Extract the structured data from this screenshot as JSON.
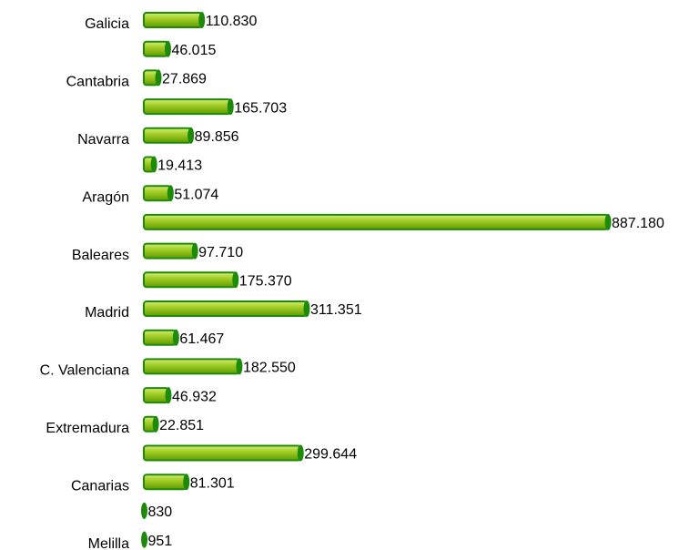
{
  "chart_data": {
    "type": "bar",
    "orientation": "horizontal",
    "categories": [
      "Galicia",
      null,
      "Cantabria",
      null,
      "Navarra",
      null,
      "Aragón",
      null,
      "Baleares",
      null,
      "Madrid",
      null,
      "C. Valenciana",
      null,
      "Extremadura",
      null,
      "Canarias",
      null,
      "Melilla"
    ],
    "values": [
      110830,
      46015,
      27869,
      165703,
      89856,
      19413,
      51074,
      887180,
      97710,
      175370,
      311351,
      61467,
      182550,
      46932,
      22851,
      299644,
      81301,
      830,
      951
    ],
    "value_labels": [
      "110.830",
      "46.015",
      "27.869",
      "165.703",
      "89.856",
      "19.413",
      "51.074",
      "887.180",
      "97.710",
      "175.370",
      "311.351",
      "61.467",
      "182.550",
      "46.932",
      "22.851",
      "299.644",
      "81.301",
      "830",
      "951"
    ],
    "color": "#8cc21a",
    "edge_color": "#1e8a0a"
  }
}
